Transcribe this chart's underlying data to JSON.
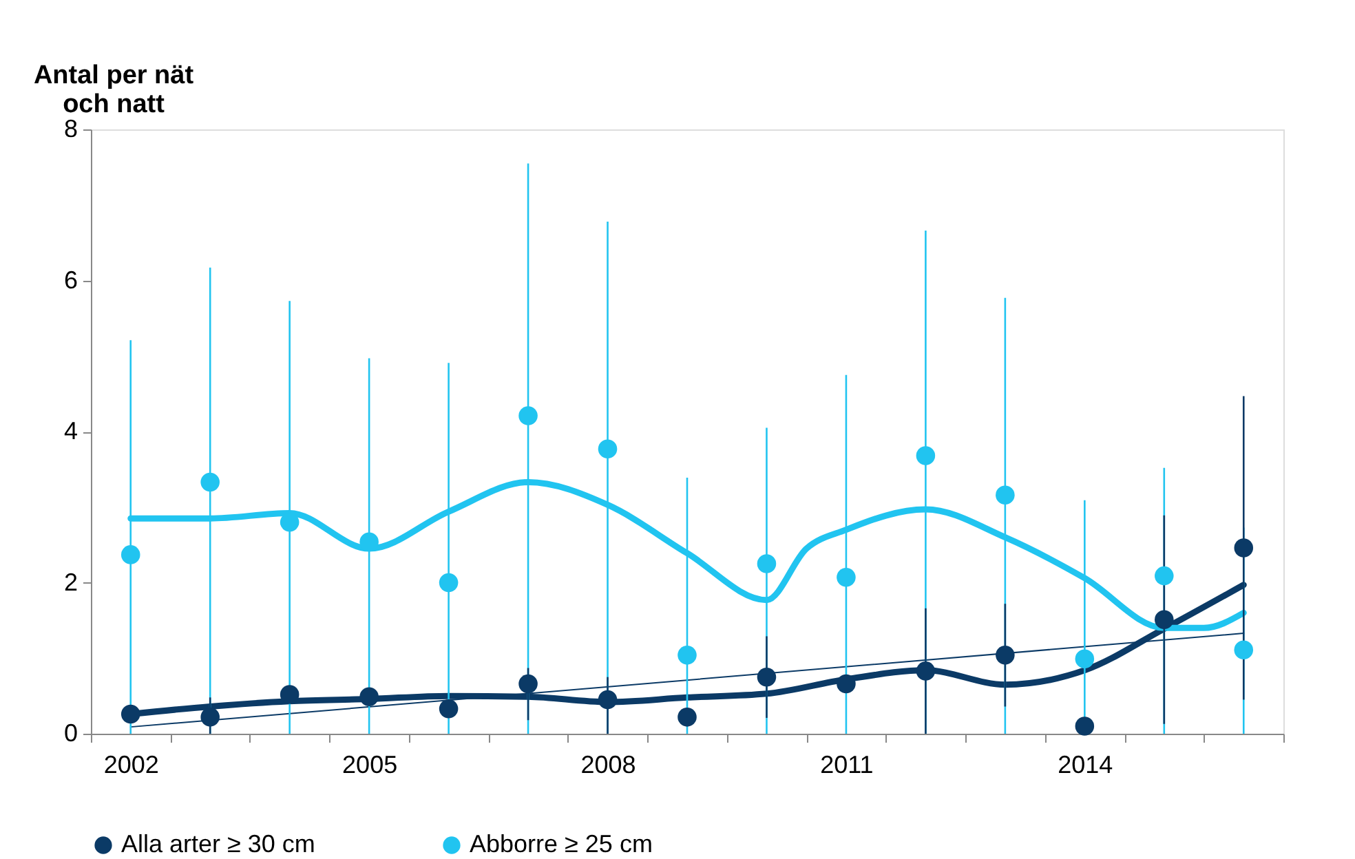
{
  "chart_data": {
    "type": "scatter",
    "ylabel": "Antal per nät och natt",
    "x": [
      2002,
      2003,
      2004,
      2005,
      2006,
      2007,
      2008,
      2009,
      2010,
      2011,
      2012,
      2013,
      2014,
      2015,
      2016
    ],
    "xlim": [
      2001.5,
      2016.5
    ],
    "xticks": [
      {
        "value": 2001.5,
        "label": null
      },
      {
        "value": 2002.5,
        "label": null
      },
      {
        "value": 2003.5,
        "label": null
      },
      {
        "value": 2004.5,
        "label": null
      },
      {
        "value": 2005.5,
        "label": null
      },
      {
        "value": 2006.5,
        "label": null
      },
      {
        "value": 2007.5,
        "label": null
      },
      {
        "value": 2008.5,
        "label": null
      },
      {
        "value": 2009.5,
        "label": null
      },
      {
        "value": 2010.5,
        "label": null
      },
      {
        "value": 2011.5,
        "label": null
      },
      {
        "value": 2012.5,
        "label": null
      },
      {
        "value": 2013.5,
        "label": null
      },
      {
        "value": 2014.5,
        "label": null
      },
      {
        "value": 2015.5,
        "label": null
      },
      {
        "value": 2016.5,
        "label": null
      },
      2002,
      2005,
      2008,
      2011,
      2014
    ],
    "ylim": [
      0,
      8
    ],
    "yticks": [
      0,
      2,
      4,
      6,
      8
    ],
    "grid": false,
    "legend": "bottom",
    "marker": "circle",
    "line_style": "solid",
    "series": [
      {
        "name": "Alla arter ≥ 30 cm",
        "color": "#0b3a66",
        "values": [
          0.26,
          0.22,
          0.52,
          0.49,
          0.33,
          0.66,
          0.45,
          0.22,
          0.75,
          0.66,
          0.83,
          1.04,
          0.1,
          1.51,
          2.46
        ],
        "errors": [
          null,
          [
            0,
            0.48
          ],
          null,
          null,
          null,
          [
            0.18,
            0.87
          ],
          [
            0,
            0.75
          ],
          null,
          [
            0.21,
            1.29
          ],
          null,
          [
            0,
            1.66
          ],
          [
            0.36,
            1.72
          ],
          null,
          [
            0.13,
            2.89
          ],
          [
            0.45,
            4.47
          ]
        ]
      },
      {
        "name": "Abborre ≥ 25 cm",
        "color": "#21c4f0",
        "values": [
          2.37,
          3.33,
          2.8,
          2.54,
          2.0,
          4.21,
          3.77,
          1.04,
          2.25,
          2.07,
          3.68,
          3.16,
          0.99,
          2.09,
          1.11
        ],
        "errors": [
          [
            0,
            5.21
          ],
          [
            0,
            6.17
          ],
          [
            0,
            5.73
          ],
          [
            0,
            4.97
          ],
          [
            0,
            4.91
          ],
          [
            0,
            7.55
          ],
          [
            0,
            6.78
          ],
          [
            0,
            3.39
          ],
          [
            0,
            4.05
          ],
          [
            0,
            4.75
          ],
          [
            0,
            6.66
          ],
          [
            0,
            5.77
          ],
          [
            0,
            3.09
          ],
          [
            0,
            3.52
          ],
          [
            0,
            2.73
          ]
        ]
      },
      {
        "type": "line",
        "marker": "none",
        "color": "#0b3a66",
        "x": [
          2002,
          2003,
          2004,
          2005,
          2006,
          2007,
          2008,
          2009,
          2010,
          2011,
          2012,
          2013,
          2014,
          2015,
          2016
        ],
        "values": [
          0.26,
          0.36,
          0.43,
          0.46,
          0.5,
          0.49,
          0.42,
          0.48,
          0.53,
          0.72,
          0.84,
          0.65,
          0.84,
          1.39,
          1.97
        ]
      },
      {
        "type": "line",
        "marker": "none",
        "color": "#21c4f0",
        "x": [
          2002,
          2003,
          2004,
          2005,
          2006,
          2007,
          2008,
          2009,
          2010,
          2010.5,
          2011,
          2012,
          2013,
          2014,
          2015,
          2015.5,
          2016
        ],
        "values": [
          2.85,
          2.85,
          2.92,
          2.45,
          2.94,
          3.33,
          3.03,
          2.39,
          1.77,
          2.45,
          2.7,
          2.97,
          2.6,
          2.06,
          1.4,
          1.4,
          1.6
        ]
      },
      {
        "type": "line",
        "marker": "none",
        "color": "#0b3a66",
        "x": [
          2002,
          2016
        ],
        "values": [
          0.09,
          1.33
        ]
      }
    ]
  }
}
